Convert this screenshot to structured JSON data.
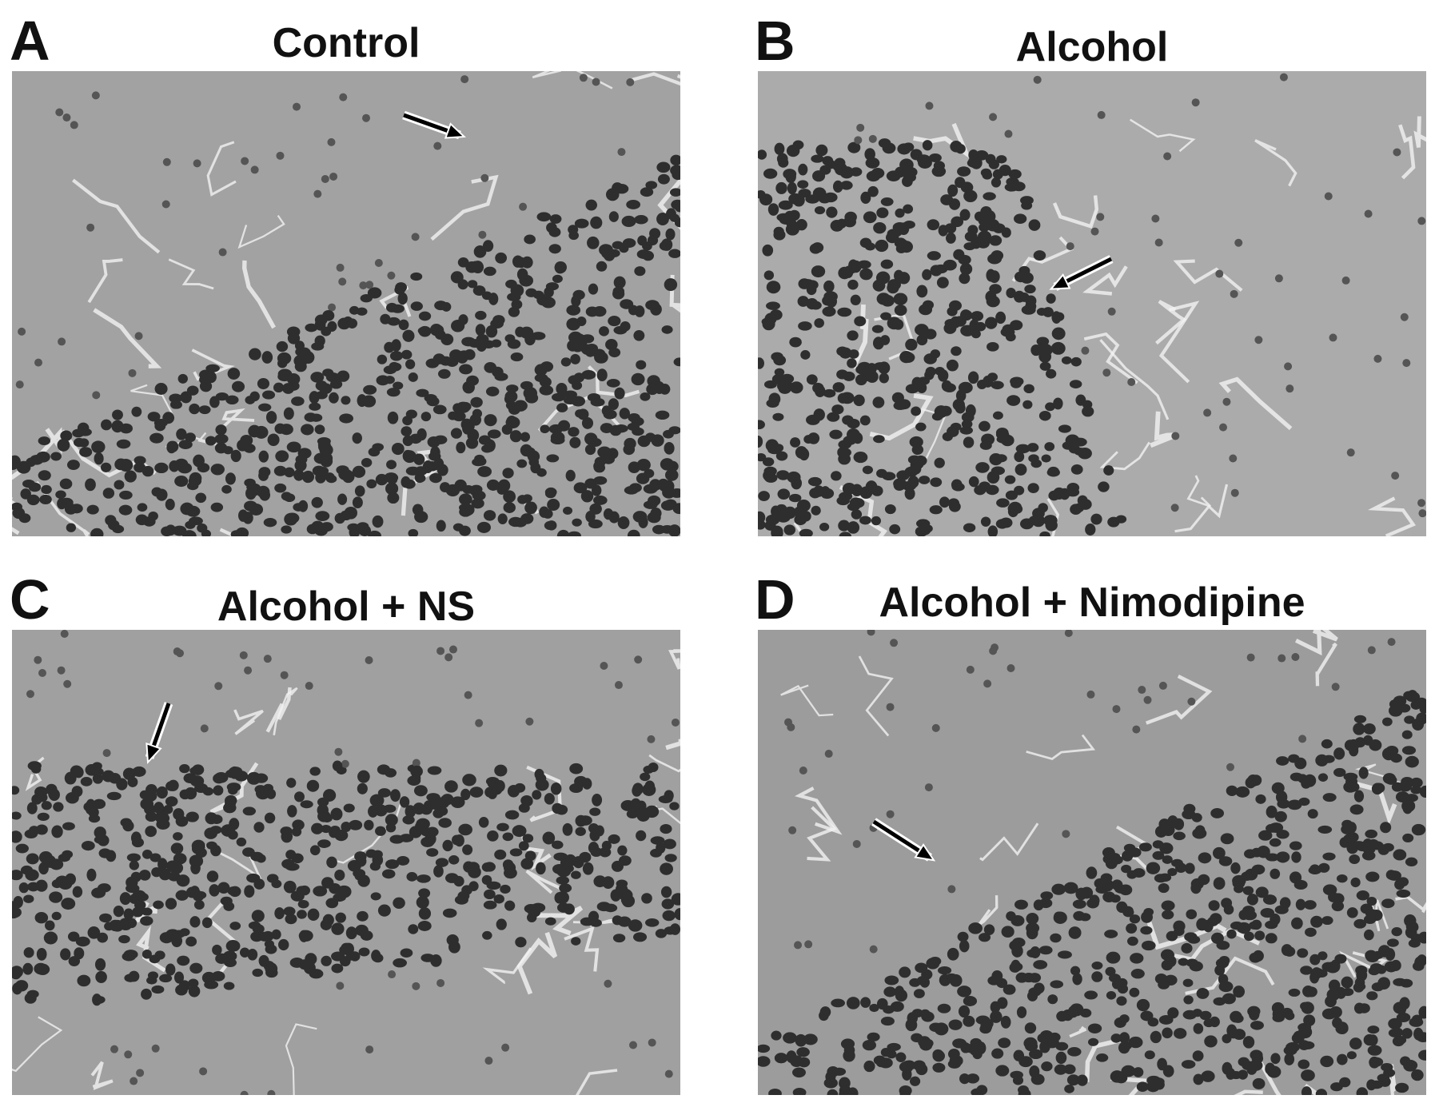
{
  "panels": [
    {
      "letter": "A",
      "title": "Control"
    },
    {
      "letter": "B",
      "title": "Alcohol"
    },
    {
      "letter": "C",
      "title": "Alcohol + NS"
    },
    {
      "letter": "D",
      "title": "Alcohol + Nimodipine"
    }
  ],
  "colors": {
    "tissue": "#9a9a9a",
    "nuclei": "#2e2e2e",
    "arrow": "#000000"
  }
}
